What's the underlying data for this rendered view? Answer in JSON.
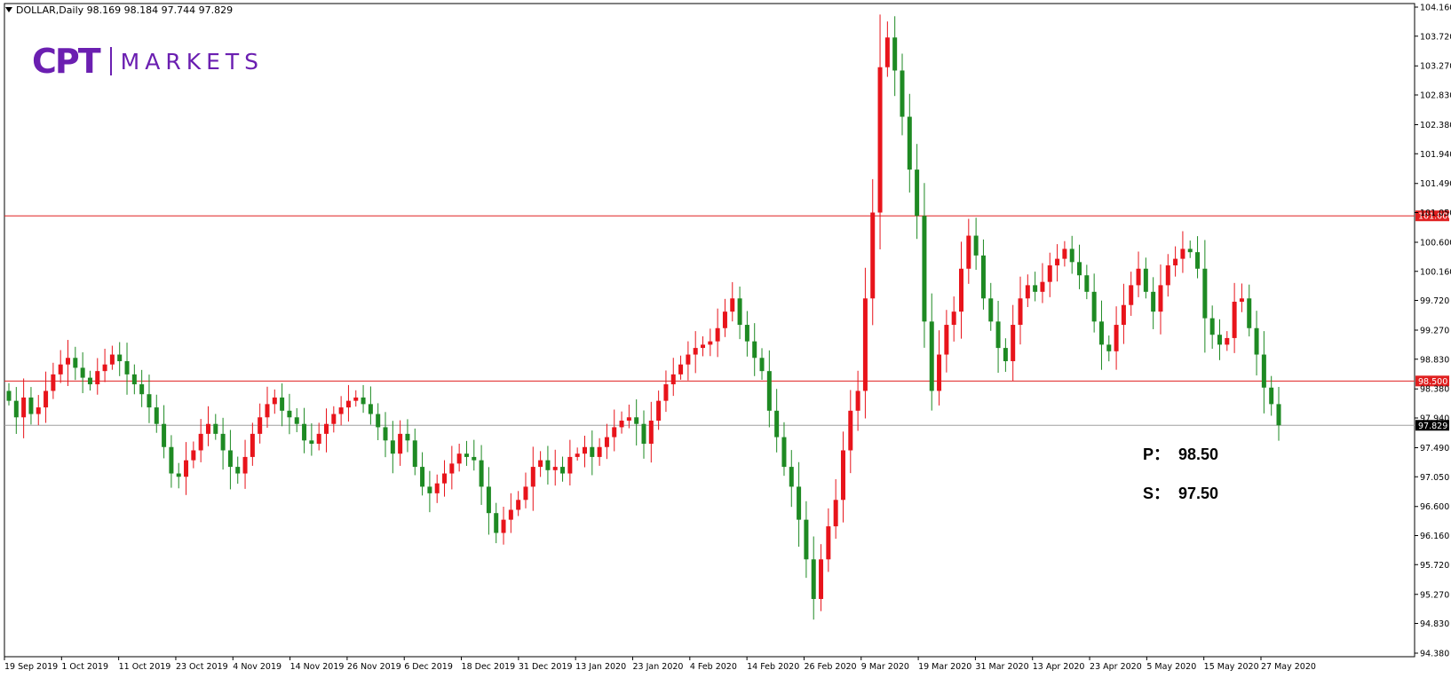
{
  "header": {
    "symbol_line": "DOLLAR,Daily  98.169 98.184 97.744 97.829"
  },
  "logo": {
    "mark": "CPT",
    "text": "MARKETS",
    "color": "#6b1fb1"
  },
  "annotations": {
    "p_label": "P：",
    "p_value": "98.50",
    "s_label": "S：",
    "s_value": "97.50"
  },
  "colors": {
    "up": "#e8141b",
    "down": "#1e8a23",
    "level_line": "#e02020",
    "current_line": "#a0a0a0",
    "grid": "#000000"
  },
  "chart_data": {
    "type": "candlestick",
    "title": "DOLLAR,Daily",
    "ohlc_last": {
      "open": 98.169,
      "high": 98.184,
      "low": 97.744,
      "close": 97.829
    },
    "ylim": [
      94.38,
      104.16
    ],
    "yticks": [
      "104.160",
      "103.720",
      "103.270",
      "102.830",
      "102.380",
      "101.940",
      "101.490",
      "101.050",
      "100.600",
      "100.160",
      "99.720",
      "99.270",
      "98.830",
      "98.380",
      "97.940",
      "97.490",
      "97.050",
      "96.600",
      "96.160",
      "95.720",
      "95.270",
      "94.830",
      "94.380"
    ],
    "xticks": [
      "19 Sep 2019",
      "1 Oct 2019",
      "11 Oct 2019",
      "23 Oct 2019",
      "4 Nov 2019",
      "14 Nov 2019",
      "26 Nov 2019",
      "6 Dec 2019",
      "18 Dec 2019",
      "31 Dec 2019",
      "13 Jan 2020",
      "23 Jan 2020",
      "4 Feb 2020",
      "14 Feb 2020",
      "26 Feb 2020",
      "9 Mar 2020",
      "19 Mar 2020",
      "31 Mar 2020",
      "13 Apr 2020",
      "23 Apr 2020",
      "5 May 2020",
      "15 May 2020",
      "27 May 2020"
    ],
    "levels": [
      {
        "value": 101.0,
        "label": "101.000",
        "color": "#e02020"
      },
      {
        "value": 98.5,
        "label": "98.500",
        "color": "#e02020"
      },
      {
        "value": 97.829,
        "label": "97.829",
        "color": "#a0a0a0"
      }
    ],
    "closes": [
      98.2,
      97.95,
      98.25,
      98.0,
      98.1,
      98.35,
      98.6,
      98.75,
      98.85,
      98.7,
      98.55,
      98.45,
      98.65,
      98.75,
      98.9,
      98.8,
      98.6,
      98.45,
      98.3,
      98.1,
      97.85,
      97.5,
      97.1,
      97.05,
      97.3,
      97.45,
      97.7,
      97.85,
      97.7,
      97.45,
      97.2,
      97.1,
      97.35,
      97.7,
      97.95,
      98.15,
      98.25,
      98.05,
      97.95,
      97.85,
      97.6,
      97.55,
      97.7,
      97.85,
      98.0,
      98.1,
      98.2,
      98.25,
      98.15,
      98.0,
      97.8,
      97.6,
      97.4,
      97.7,
      97.6,
      97.2,
      96.9,
      96.8,
      96.95,
      97.1,
      97.25,
      97.4,
      97.35,
      97.3,
      96.9,
      96.5,
      96.2,
      96.4,
      96.55,
      96.7,
      96.9,
      97.2,
      97.3,
      97.15,
      97.2,
      97.1,
      97.35,
      97.4,
      97.5,
      97.35,
      97.5,
      97.65,
      97.8,
      97.9,
      97.95,
      97.85,
      97.55,
      97.9,
      98.2,
      98.45,
      98.6,
      98.75,
      98.9,
      99.0,
      99.05,
      99.1,
      99.3,
      99.55,
      99.75,
      99.35,
      99.1,
      98.85,
      98.65,
      98.05,
      97.65,
      97.2,
      96.9,
      96.4,
      95.8,
      95.2,
      95.8,
      96.3,
      96.7,
      97.45,
      98.05,
      98.35,
      99.75,
      101.05,
      103.25,
      103.7,
      103.2,
      102.5,
      101.7,
      101.0,
      99.4,
      98.35,
      98.9,
      99.35,
      99.55,
      100.2,
      100.7,
      100.4,
      99.75,
      99.4,
      99.0,
      98.8,
      99.35,
      99.75,
      99.95,
      99.85,
      100.0,
      100.25,
      100.35,
      100.5,
      100.3,
      100.1,
      99.85,
      99.4,
      99.05,
      98.95,
      99.35,
      99.65,
      99.95,
      100.2,
      99.85,
      99.55,
      99.95,
      100.25,
      100.35,
      100.5,
      100.45,
      100.2,
      99.45,
      99.2,
      99.05,
      99.15,
      99.7,
      99.75,
      99.3,
      98.9,
      98.4,
      98.15,
      97.83
    ],
    "series": [
      {
        "name": "DOLLAR,Daily",
        "values_key": "closes"
      }
    ]
  }
}
